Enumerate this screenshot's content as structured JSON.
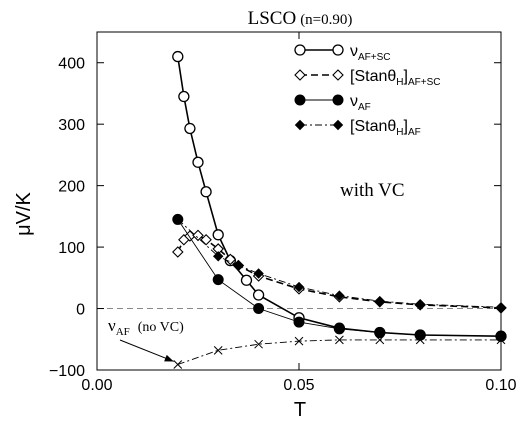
{
  "chart_data": {
    "type": "line",
    "title": "LSCO",
    "title_suffix": "(n=0.90)",
    "xlabel": "T",
    "ylabel": "μV/K",
    "xlim": [
      0.0,
      0.1
    ],
    "ylim": [
      -100,
      450
    ],
    "xticks": [
      0.0,
      0.05,
      0.1
    ],
    "xtick_labels": [
      "0.00",
      "0.05",
      "0.10"
    ],
    "yticks": [
      -100,
      0,
      100,
      200,
      300,
      400
    ],
    "ytick_labels": [
      "−100",
      "0",
      "100",
      "200",
      "300",
      "400"
    ],
    "grid": false,
    "zero_line": true,
    "legend_position": "top-right",
    "series": [
      {
        "key": "nu_af_sc",
        "name": "ν_AF+SC",
        "legend_main": "ν",
        "legend_sub": "AF+SC",
        "marker": "open-circle",
        "dash": "solid",
        "width": 1.6,
        "x": [
          0.02,
          0.0215,
          0.023,
          0.025,
          0.027,
          0.03,
          0.033,
          0.037,
          0.04,
          0.05,
          0.06,
          0.07,
          0.08,
          0.1
        ],
        "y": [
          410,
          345,
          293,
          238,
          190,
          120,
          78,
          46,
          22,
          -15,
          -32,
          -39,
          -43,
          -45
        ]
      },
      {
        "key": "stan_af_sc",
        "name": "[Stanθ_H]_AF+SC",
        "legend_main": "[Stanθ",
        "legend_sub1": "H",
        "legend_mid": "]",
        "legend_sub2": "AF+SC",
        "marker": "open-diamond",
        "dash": "dashed",
        "width": 1.6,
        "x": [
          0.02,
          0.0215,
          0.023,
          0.025,
          0.027,
          0.03,
          0.033,
          0.035,
          0.04,
          0.05,
          0.06,
          0.07,
          0.08,
          0.1
        ],
        "y": [
          92,
          112,
          118,
          119,
          112,
          97,
          80,
          70,
          53,
          32,
          19,
          11,
          6,
          1
        ]
      },
      {
        "key": "nu_af",
        "name": "ν_AF",
        "legend_main": "ν",
        "legend_sub": "AF",
        "marker": "filled-circle",
        "dash": "solid",
        "width": 0.9,
        "x": [
          0.02,
          0.03,
          0.04,
          0.05,
          0.06,
          0.07,
          0.08,
          0.1
        ],
        "y": [
          145,
          47,
          0,
          -22,
          -33,
          -39,
          -43,
          -45
        ]
      },
      {
        "key": "stan_af",
        "name": "[Stanθ_H]_AF",
        "legend_main": "[Stanθ",
        "legend_sub1": "H",
        "legend_mid": "]",
        "legend_sub2": "AF",
        "marker": "filled-diamond",
        "dash": "dashdot",
        "width": 0.9,
        "x": [
          0.02,
          0.03,
          0.035,
          0.04,
          0.05,
          0.06,
          0.07,
          0.08,
          0.1
        ],
        "y": [
          145,
          85,
          70,
          57,
          35,
          21,
          12,
          7,
          2
        ]
      },
      {
        "key": "nu_af_novc",
        "name": "ν_AF (no VC)",
        "marker": "cross",
        "dash": "dashdot",
        "width": 0.9,
        "x": [
          0.02,
          0.03,
          0.04,
          0.05,
          0.06,
          0.07,
          0.08,
          0.1
        ],
        "y": [
          -91,
          -68,
          -58,
          -53,
          -51,
          -51,
          -51,
          -51
        ]
      }
    ],
    "annotations": {
      "with_vc": "with VC",
      "novc_label_main": "ν",
      "novc_label_sub": "AF",
      "novc_label_rest": "(no VC)",
      "novc_arrow_target": [
        0.02,
        -91
      ]
    }
  }
}
